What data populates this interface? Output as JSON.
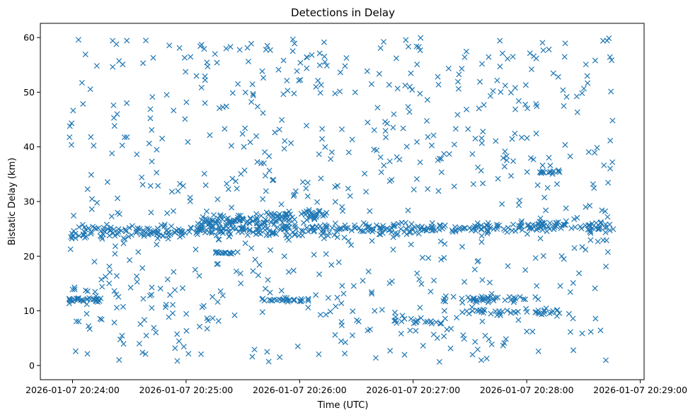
{
  "colors": {
    "series": "#1f77b4",
    "axes": "#000000",
    "background": "#ffffff"
  },
  "chart_data": {
    "type": "scatter",
    "marker": "x",
    "title": "Detections in Delay",
    "xlabel": "Time (UTC)",
    "ylabel": "Bistatic Delay (km)",
    "x_unit": "time",
    "xlim": [
      "2026-01-07 20:23:43",
      "2026-01-07 20:29:02"
    ],
    "ylim": [
      -2.6,
      62.6
    ],
    "xticks": [
      {
        "t": "2026-01-07 20:24:00",
        "label": "2026-01-07 20:24:00"
      },
      {
        "t": "2026-01-07 20:25:00",
        "label": "2026-01-07 20:25:00"
      },
      {
        "t": "2026-01-07 20:26:00",
        "label": "2026-01-07 20:26:00"
      },
      {
        "t": "2026-01-07 20:27:00",
        "label": "2026-01-07 20:27:00"
      },
      {
        "t": "2026-01-07 20:28:00",
        "label": "2026-01-07 20:28:00"
      },
      {
        "t": "2026-01-07 20:29:00",
        "label": "2026-01-07 20:29:00"
      }
    ],
    "yticks": [
      0,
      10,
      20,
      30,
      40,
      50,
      60
    ],
    "grid": false,
    "legend": "none",
    "time_range": [
      "2026-01-07 20:23:58",
      "2026-01-07 20:28:46"
    ],
    "clusters": [
      {
        "kind": "track",
        "from": "20:23:58",
        "to": "20:28:46",
        "y_start": 24.3,
        "y_end": 25.6,
        "spread": 1.0,
        "points": 420
      },
      {
        "kind": "track",
        "from": "20:25:05",
        "to": "20:26:15",
        "y_start": 26.0,
        "y_end": 27.8,
        "spread": 0.9,
        "points": 120
      },
      {
        "kind": "band",
        "from": "20:23:58",
        "to": "20:24:15",
        "y": 12.0,
        "spread": 0.5,
        "points": 30
      },
      {
        "kind": "band",
        "from": "20:25:40",
        "to": "20:26:05",
        "y": 12.0,
        "spread": 0.4,
        "points": 28
      },
      {
        "kind": "band",
        "from": "20:27:15",
        "to": "20:28:00",
        "y": 12.2,
        "spread": 0.6,
        "points": 40
      },
      {
        "kind": "band",
        "from": "20:25:15",
        "to": "20:25:25",
        "y": 20.6,
        "spread": 0.3,
        "points": 16
      },
      {
        "kind": "band",
        "from": "20:27:25",
        "to": "20:28:25",
        "y": 9.8,
        "spread": 0.6,
        "points": 40
      },
      {
        "kind": "band",
        "from": "20:26:48",
        "to": "20:27:15",
        "y": 8.2,
        "spread": 0.6,
        "points": 20
      },
      {
        "kind": "band",
        "from": "20:28:05",
        "to": "20:28:18",
        "y": 35.4,
        "spread": 0.3,
        "points": 14
      },
      {
        "kind": "uniform",
        "from": "20:23:58",
        "to": "20:28:46",
        "y_min": 0.5,
        "y_max": 60.0,
        "points": 720
      }
    ]
  }
}
